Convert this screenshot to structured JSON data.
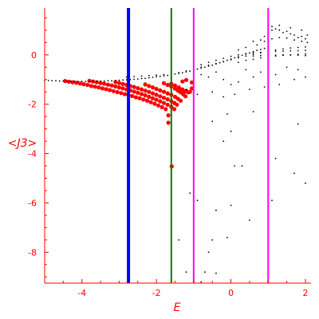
{
  "chart_data": {
    "type": "scatter",
    "title": "",
    "xlabel": "E",
    "ylabel": "<J3>",
    "xlim": [
      -5.0,
      2.15
    ],
    "ylim": [
      -9.25,
      1.9
    ],
    "xticks": [
      -4,
      -2,
      0,
      2
    ],
    "xtick_labels": [
      "-4",
      "-2",
      "0",
      "2"
    ],
    "yticks": [
      0,
      -2,
      -4,
      -6,
      -8
    ],
    "ytick_labels": [
      "0",
      "-2",
      "-4",
      "-6",
      "-8"
    ],
    "axis_color": "#ff0000",
    "grid": false,
    "vertical_lines": [
      {
        "x": -2.75,
        "color": "#0000ff",
        "width": 4
      },
      {
        "x": -1.6,
        "color": "#008000",
        "width": 2
      },
      {
        "x": -1.0,
        "color": "#ff00ff",
        "width": 2
      },
      {
        "x": 1.0,
        "color": "#ff00ff",
        "width": 2
      }
    ],
    "series": [
      {
        "color": "#ff0000",
        "points": [
          [
            -4.45,
            -1.06
          ],
          [
            -4.35,
            -1.09
          ],
          [
            -4.25,
            -1.11
          ],
          [
            -4.15,
            -1.13
          ],
          [
            -4.05,
            -1.16
          ],
          [
            -3.95,
            -1.19
          ],
          [
            -3.85,
            -1.22
          ],
          [
            -3.75,
            -1.26
          ],
          [
            -3.65,
            -1.29
          ],
          [
            -3.55,
            -1.32
          ],
          [
            -3.45,
            -1.36
          ],
          [
            -3.35,
            -1.39
          ],
          [
            -3.25,
            -1.43
          ],
          [
            -3.15,
            -1.47
          ],
          [
            -3.05,
            -1.51
          ],
          [
            -2.95,
            -1.55
          ],
          [
            -2.85,
            -1.59
          ],
          [
            -2.75,
            -1.63
          ],
          [
            -2.65,
            -1.67
          ],
          [
            -2.55,
            -1.72
          ],
          [
            -2.45,
            -1.76
          ],
          [
            -2.35,
            -1.81
          ],
          [
            -2.25,
            -1.86
          ],
          [
            -2.15,
            -1.92
          ],
          [
            -2.05,
            -1.98
          ],
          [
            -1.95,
            -2.05
          ],
          [
            -1.85,
            -2.12
          ],
          [
            -1.75,
            -2.2
          ],
          [
            -1.68,
            -2.45
          ],
          [
            -1.68,
            -2.75
          ],
          [
            -3.8,
            -1.05
          ],
          [
            -3.7,
            -1.08
          ],
          [
            -3.6,
            -1.11
          ],
          [
            -3.5,
            -1.14
          ],
          [
            -3.4,
            -1.17
          ],
          [
            -3.3,
            -1.21
          ],
          [
            -3.2,
            -1.24
          ],
          [
            -3.1,
            -1.28
          ],
          [
            -3.0,
            -1.32
          ],
          [
            -2.9,
            -1.36
          ],
          [
            -2.8,
            -1.4
          ],
          [
            -2.7,
            -1.44
          ],
          [
            -2.6,
            -1.49
          ],
          [
            -2.5,
            -1.54
          ],
          [
            -2.4,
            -1.59
          ],
          [
            -2.3,
            -1.64
          ],
          [
            -2.2,
            -1.7
          ],
          [
            -2.1,
            -1.76
          ],
          [
            -2.0,
            -1.82
          ],
          [
            -1.9,
            -1.88
          ],
          [
            -1.8,
            -1.95
          ],
          [
            -1.7,
            -2.02
          ],
          [
            -1.6,
            -2.1
          ],
          [
            -1.52,
            -2.2
          ],
          [
            -3.1,
            -1.1
          ],
          [
            -3.0,
            -1.14
          ],
          [
            -2.9,
            -1.18
          ],
          [
            -2.8,
            -1.22
          ],
          [
            -2.7,
            -1.26
          ],
          [
            -2.6,
            -1.3
          ],
          [
            -2.5,
            -1.35
          ],
          [
            -2.4,
            -1.4
          ],
          [
            -2.3,
            -1.45
          ],
          [
            -2.2,
            -1.5
          ],
          [
            -2.1,
            -1.56
          ],
          [
            -2.0,
            -1.62
          ],
          [
            -1.9,
            -1.68
          ],
          [
            -1.8,
            -1.74
          ],
          [
            -1.7,
            -1.8
          ],
          [
            -1.6,
            -1.87
          ],
          [
            -1.52,
            -1.95
          ],
          [
            -1.45,
            -2.02
          ],
          [
            -2.3,
            -1.2
          ],
          [
            -2.2,
            -1.26
          ],
          [
            -2.1,
            -1.32
          ],
          [
            -2.0,
            -1.38
          ],
          [
            -1.9,
            -1.44
          ],
          [
            -1.8,
            -1.5
          ],
          [
            -1.7,
            -1.56
          ],
          [
            -1.6,
            -1.62
          ],
          [
            -1.5,
            -1.7
          ],
          [
            -1.42,
            -1.78
          ],
          [
            -1.35,
            -1.86
          ],
          [
            -1.8,
            -1.15
          ],
          [
            -1.7,
            -1.22
          ],
          [
            -1.6,
            -1.29
          ],
          [
            -1.5,
            -1.37
          ],
          [
            -1.42,
            -1.45
          ],
          [
            -1.35,
            -1.52
          ],
          [
            -1.28,
            -1.6
          ],
          [
            -1.22,
            -1.68
          ],
          [
            -1.6,
            -1.17
          ],
          [
            -1.5,
            -1.24
          ],
          [
            -1.4,
            -1.32
          ],
          [
            -1.3,
            -1.4
          ],
          [
            -1.2,
            -1.46
          ],
          [
            -1.1,
            -1.5
          ],
          [
            -1.35,
            -1.4
          ],
          [
            -1.25,
            -1.5
          ],
          [
            -1.15,
            -1.52
          ],
          [
            -1.05,
            -1.36
          ],
          [
            -1.05,
            -1.12
          ],
          [
            -1.3,
            -1.08
          ],
          [
            -1.2,
            -1.02
          ],
          [
            -1.59,
            -4.52
          ]
        ]
      },
      {
        "color": "#000000",
        "points": [
          [
            -5.0,
            -1.03
          ],
          [
            -4.9,
            -1.04
          ],
          [
            -4.8,
            -1.05
          ],
          [
            -4.7,
            -1.05
          ],
          [
            -4.6,
            -1.06
          ],
          [
            -4.5,
            -1.06
          ],
          [
            -4.4,
            -1.07
          ],
          [
            -4.3,
            -1.07
          ],
          [
            -4.2,
            -1.07
          ],
          [
            -4.1,
            -1.08
          ],
          [
            -4.0,
            -1.08
          ],
          [
            -3.9,
            -1.08
          ],
          [
            -3.8,
            -1.08
          ],
          [
            -3.7,
            -1.07
          ],
          [
            -3.6,
            -1.07
          ],
          [
            -3.5,
            -1.06
          ],
          [
            -3.4,
            -1.06
          ],
          [
            -3.3,
            -1.05
          ],
          [
            -3.2,
            -1.05
          ],
          [
            -3.1,
            -1.04
          ],
          [
            -3.0,
            -1.03
          ],
          [
            -2.9,
            -1.02
          ],
          [
            -2.8,
            -1.01
          ],
          [
            -2.7,
            -1.0
          ],
          [
            -2.6,
            -0.99
          ],
          [
            -2.5,
            -0.98
          ],
          [
            -2.4,
            -0.96
          ],
          [
            -2.3,
            -0.95
          ],
          [
            -2.2,
            -0.93
          ],
          [
            -2.1,
            -0.91
          ],
          [
            -2.0,
            -0.89
          ],
          [
            -1.9,
            -0.87
          ],
          [
            -1.8,
            -0.85
          ],
          [
            -1.7,
            -0.83
          ],
          [
            -1.6,
            -0.8
          ],
          [
            -1.5,
            -0.78
          ],
          [
            -1.4,
            -0.75
          ],
          [
            -1.3,
            -0.72
          ],
          [
            -1.2,
            -0.69
          ],
          [
            -1.1,
            -0.66
          ],
          [
            -1.0,
            -0.62
          ],
          [
            -0.9,
            -0.58
          ],
          [
            -0.8,
            -0.54
          ],
          [
            -0.7,
            -0.5
          ],
          [
            -0.6,
            -0.46
          ],
          [
            -0.5,
            -0.42
          ],
          [
            -0.4,
            -0.37
          ],
          [
            -0.3,
            -0.32
          ],
          [
            -0.2,
            -0.27
          ],
          [
            -0.1,
            -0.22
          ],
          [
            0.0,
            -0.17
          ],
          [
            0.1,
            -0.12
          ],
          [
            0.2,
            -0.07
          ],
          [
            0.3,
            -0.02
          ],
          [
            0.4,
            0.03
          ],
          [
            0.5,
            0.08
          ],
          [
            0.6,
            0.13
          ],
          [
            0.7,
            0.18
          ],
          [
            0.8,
            0.22
          ],
          [
            0.9,
            0.26
          ],
          [
            1.0,
            0.3
          ],
          [
            -2.8,
            -0.9
          ],
          [
            -2.6,
            -0.88
          ],
          [
            -2.4,
            -0.86
          ],
          [
            -2.2,
            -0.84
          ],
          [
            -2.0,
            -0.82
          ],
          [
            -1.8,
            -0.8
          ],
          [
            -1.6,
            -0.78
          ],
          [
            -1.4,
            -0.72
          ],
          [
            -1.2,
            -0.65
          ],
          [
            -1.0,
            -0.58
          ],
          [
            -0.8,
            -0.5
          ],
          [
            -0.6,
            -0.42
          ],
          [
            -0.4,
            -0.35
          ],
          [
            -0.2,
            -0.28
          ],
          [
            0.0,
            -0.2
          ],
          [
            0.2,
            -0.12
          ],
          [
            0.4,
            -0.05
          ],
          [
            0.6,
            0.02
          ],
          [
            0.8,
            0.08
          ],
          [
            1.0,
            0.14
          ],
          [
            1.2,
            0.2
          ],
          [
            1.4,
            0.24
          ],
          [
            1.6,
            0.28
          ],
          [
            1.8,
            0.3
          ],
          [
            2.0,
            0.32
          ],
          [
            -0.8,
            -0.4
          ],
          [
            -0.6,
            -0.3
          ],
          [
            -0.4,
            -0.22
          ],
          [
            -0.2,
            -0.14
          ],
          [
            0.0,
            -0.06
          ],
          [
            0.2,
            0.0
          ],
          [
            0.4,
            0.05
          ],
          [
            0.6,
            0.08
          ],
          [
            0.8,
            0.1
          ],
          [
            1.0,
            0.12
          ],
          [
            1.2,
            0.14
          ],
          [
            1.4,
            0.15
          ],
          [
            1.6,
            0.16
          ],
          [
            1.8,
            0.17
          ],
          [
            2.0,
            0.18
          ],
          [
            0.2,
            -0.3
          ],
          [
            0.4,
            -0.22
          ],
          [
            0.6,
            -0.18
          ],
          [
            0.8,
            -0.12
          ],
          [
            1.0,
            -0.08
          ],
          [
            1.2,
            -0.05
          ],
          [
            1.4,
            -0.02
          ],
          [
            1.6,
            0.0
          ],
          [
            1.8,
            0.02
          ],
          [
            2.0,
            0.04
          ],
          [
            0.6,
            -0.05
          ],
          [
            0.8,
            -0.03
          ],
          [
            1.0,
            -0.02
          ],
          [
            1.2,
            -0.01
          ],
          [
            1.4,
            0.0
          ],
          [
            1.6,
            -0.01
          ],
          [
            1.8,
            -0.02
          ],
          [
            2.0,
            -0.03
          ],
          [
            0.8,
            0.6
          ],
          [
            0.9,
            0.75
          ],
          [
            1.0,
            0.9
          ],
          [
            1.1,
            1.0
          ],
          [
            1.2,
            1.05
          ],
          [
            1.3,
            1.0
          ],
          [
            1.4,
            0.9
          ],
          [
            1.5,
            0.95
          ],
          [
            1.6,
            0.85
          ],
          [
            1.7,
            0.8
          ],
          [
            1.8,
            0.7
          ],
          [
            1.9,
            0.75
          ],
          [
            2.0,
            0.65
          ],
          [
            2.05,
            0.8
          ],
          [
            0.7,
            0.4
          ],
          [
            0.9,
            0.55
          ],
          [
            1.1,
            0.65
          ],
          [
            1.3,
            0.7
          ],
          [
            1.5,
            0.68
          ],
          [
            1.7,
            0.6
          ],
          [
            1.9,
            0.55
          ],
          [
            2.05,
            0.5
          ],
          [
            1.0,
            1.8
          ],
          [
            1.1,
            1.15
          ],
          [
            1.3,
            1.2
          ],
          [
            1.6,
            1.1
          ],
          [
            1.9,
            1.0
          ],
          [
            0.6,
            0.55
          ],
          [
            0.4,
            0.3
          ],
          [
            0.2,
            0.2
          ],
          [
            -0.8,
            -0.8
          ],
          [
            -0.6,
            -0.9
          ],
          [
            -0.4,
            -0.7
          ],
          [
            -0.2,
            -1.0
          ],
          [
            0.0,
            -1.2
          ],
          [
            0.2,
            -1.1
          ],
          [
            0.4,
            -0.6
          ],
          [
            0.6,
            -0.9
          ],
          [
            0.8,
            -0.7
          ],
          [
            1.2,
            -0.8
          ],
          [
            1.5,
            -0.5
          ],
          [
            1.8,
            -0.6
          ],
          [
            -1.2,
            -1.4
          ],
          [
            -0.9,
            -1.6
          ],
          [
            -0.5,
            -1.5
          ],
          [
            -0.2,
            -1.7
          ],
          [
            0.1,
            -1.6
          ],
          [
            0.5,
            -1.4
          ],
          [
            0.9,
            -1.3
          ],
          [
            1.3,
            -1.2
          ],
          [
            1.7,
            -1.0
          ],
          [
            2.0,
            -0.9
          ],
          [
            -0.5,
            -2.7
          ],
          [
            -0.1,
            -2.4
          ],
          [
            0.6,
            -2.3
          ],
          [
            1.8,
            -2.8
          ],
          [
            0.0,
            -3.1
          ],
          [
            -0.2,
            -3.5
          ],
          [
            0.1,
            -4.5
          ],
          [
            0.3,
            -4.5
          ],
          [
            1.2,
            -4.2
          ],
          [
            1.7,
            -4.8
          ],
          [
            2.0,
            -5.2
          ],
          [
            -1.1,
            -5.6
          ],
          [
            -0.9,
            -5.9
          ],
          [
            1.1,
            -5.9
          ],
          [
            0.0,
            -6.1
          ],
          [
            -0.4,
            -6.3
          ],
          [
            0.5,
            -6.7
          ],
          [
            -1.4,
            -7.5
          ],
          [
            -0.5,
            -7.5
          ],
          [
            -0.1,
            -7.4
          ],
          [
            -0.6,
            -8.0
          ],
          [
            -0.7,
            -8.8
          ],
          [
            -1.2,
            -8.8
          ],
          [
            -0.4,
            -8.85
          ],
          [
            -1.0,
            -8.9
          ],
          [
            -0.8,
            -9.2
          ]
        ]
      }
    ]
  }
}
